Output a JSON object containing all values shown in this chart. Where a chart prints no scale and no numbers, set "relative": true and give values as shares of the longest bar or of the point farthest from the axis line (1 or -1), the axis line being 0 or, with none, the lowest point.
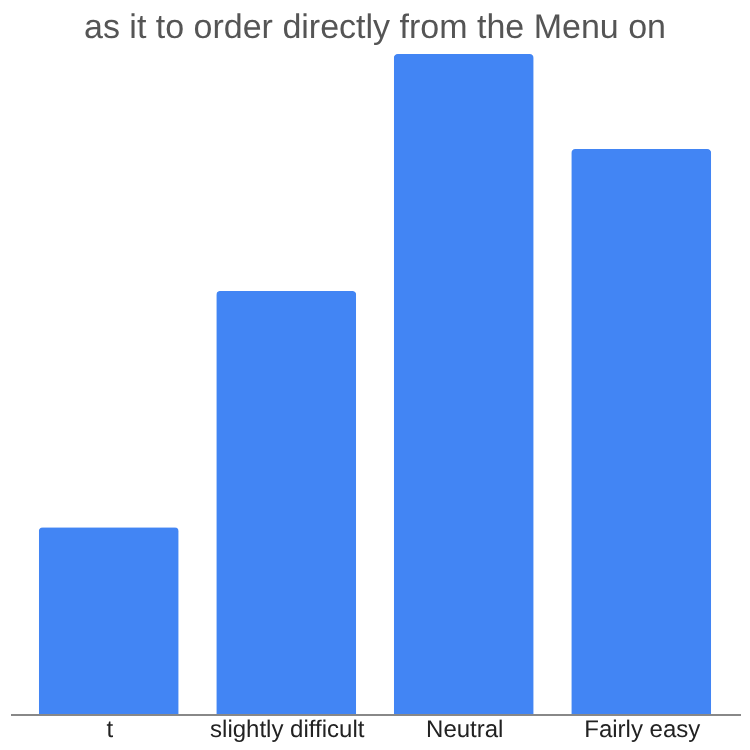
{
  "chart_data": {
    "type": "bar",
    "title": "as it to order directly from the Menu on",
    "categories": [
      "t",
      "slightly difficult",
      "Neutral",
      "Fairly easy"
    ],
    "values": [
      0.283,
      0.641,
      1,
      0.856
    ],
    "color": "#4285f4",
    "relative": true
  }
}
